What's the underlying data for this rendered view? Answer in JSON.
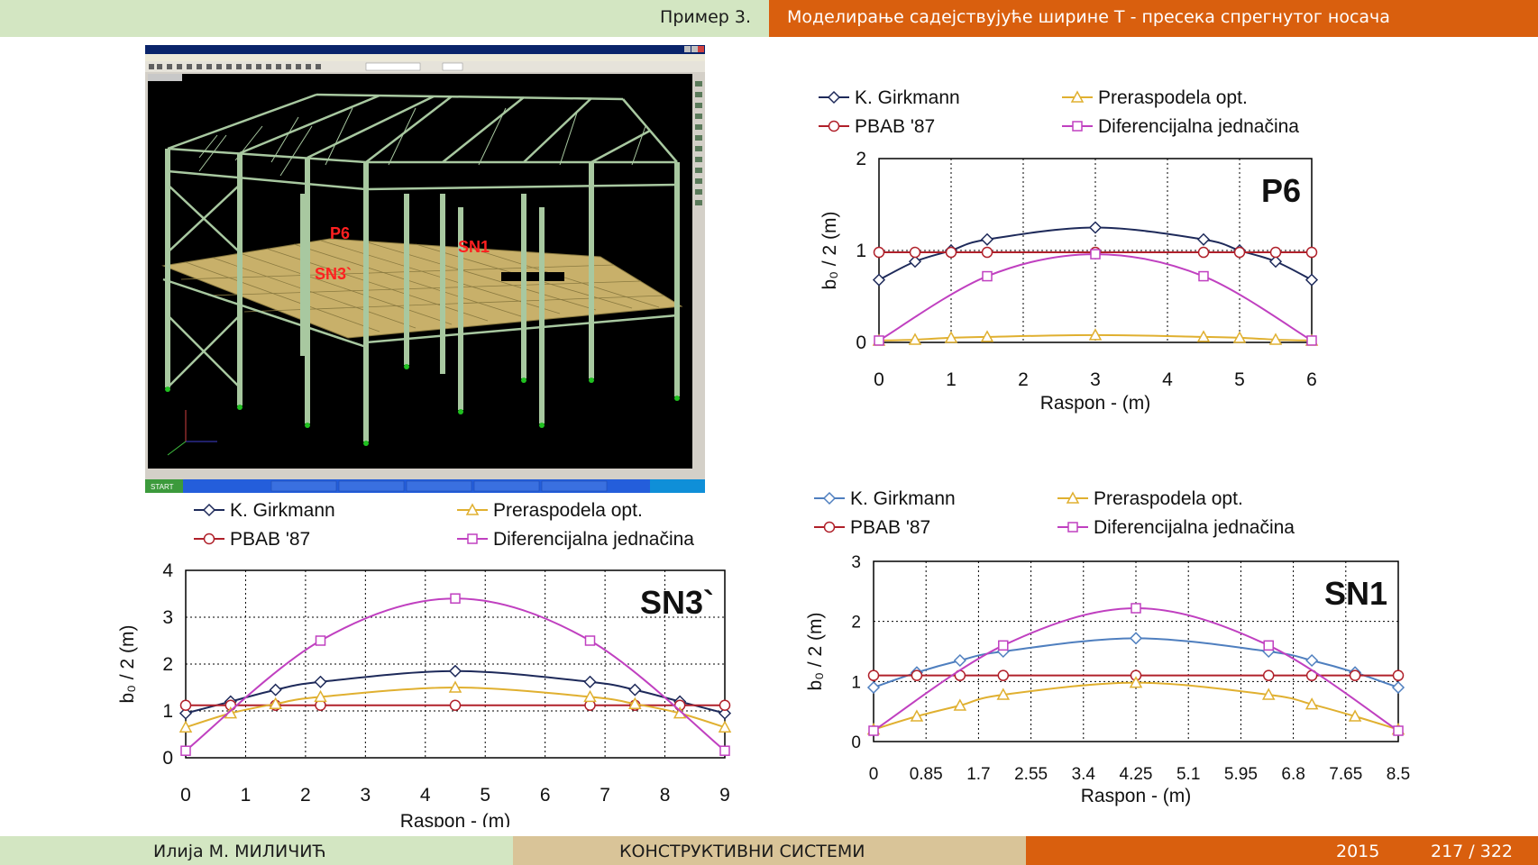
{
  "header": {
    "section": "Пример 3.",
    "title": "Моделирање садејствујуће ширине T - пресека спрегнутог носача"
  },
  "footer": {
    "author": "Илија М. МИЛИЧИЋ",
    "course": "КОНСТРУКТИВНИ СИСТЕМИ",
    "year": "2015",
    "page": "217 / 322"
  },
  "screenshot": {
    "label_p6": "P6",
    "label_sn3": "SN3`",
    "label_sn1": "SN1",
    "start_label": "START",
    "colors": {
      "background": "#000000",
      "frame": "#a8c8a0",
      "slab": "#c8b06a",
      "label": "#ff2020"
    }
  },
  "colors": {
    "girkmann": "#1e2a5a",
    "girkmann_sn1": "#4f7fbf",
    "pbab": "#b0202a",
    "preraspodela": "#e0b030",
    "diferencijalna": "#c040c0"
  },
  "chart_data": [
    {
      "type": "line",
      "title": "P6",
      "xlabel": "Raspon - (m)",
      "ylabel": "b₀ / 2  (m)",
      "xlim": [
        0,
        6
      ],
      "ylim": [
        0,
        2
      ],
      "xticks": [
        0,
        1,
        2,
        3,
        4,
        5,
        6
      ],
      "yticks": [
        0,
        1,
        2
      ],
      "xtick_labels": [
        "0",
        "1",
        "2",
        "3",
        "4",
        "5",
        "6"
      ],
      "grid": true,
      "legend": "top",
      "series": [
        {
          "name": "K. Girkmann",
          "marker": "diamond",
          "color_key": "girkmann",
          "x": [
            0,
            0.5,
            1,
            1.5,
            3,
            4.5,
            5,
            5.5,
            6
          ],
          "y": [
            0.68,
            0.88,
            1.0,
            1.12,
            1.25,
            1.12,
            1.0,
            0.88,
            0.68
          ]
        },
        {
          "name": "PBAB '87",
          "marker": "circle",
          "color_key": "pbab",
          "x": [
            0,
            0.5,
            1,
            1.5,
            3,
            4.5,
            5,
            5.5,
            6
          ],
          "y": [
            0.98,
            0.98,
            0.98,
            0.98,
            0.98,
            0.98,
            0.98,
            0.98,
            0.98
          ]
        },
        {
          "name": "Preraspodela opt.",
          "marker": "triangle",
          "color_key": "preraspodela",
          "x": [
            0,
            0.5,
            1,
            1.5,
            3,
            4.5,
            5,
            5.5,
            6
          ],
          "y": [
            0.02,
            0.03,
            0.05,
            0.06,
            0.08,
            0.06,
            0.05,
            0.03,
            0.02
          ]
        },
        {
          "name": "Diferencijalna jednačina",
          "marker": "square",
          "color_key": "diferencijalna",
          "x": [
            0,
            1.5,
            3,
            4.5,
            6
          ],
          "y": [
            0.02,
            0.72,
            0.96,
            0.72,
            0.02
          ]
        }
      ]
    },
    {
      "type": "line",
      "title": "SN3`",
      "xlabel": "Raspon - (m)",
      "ylabel": "b₀ / 2 (m)",
      "xlim": [
        0,
        9
      ],
      "ylim": [
        0,
        4
      ],
      "xticks": [
        0,
        1,
        2,
        3,
        4,
        5,
        6,
        7,
        8,
        9
      ],
      "yticks": [
        0,
        1,
        2,
        3,
        4
      ],
      "xtick_labels": [
        "0",
        "1",
        "2",
        "3",
        "4",
        "5",
        "6",
        "7",
        "8",
        "9"
      ],
      "grid": true,
      "legend": "top",
      "series": [
        {
          "name": "K. Girkmann",
          "marker": "diamond",
          "color_key": "girkmann",
          "x": [
            0,
            0.75,
            1.5,
            2.25,
            4.5,
            6.75,
            7.5,
            8.25,
            9
          ],
          "y": [
            0.95,
            1.2,
            1.45,
            1.62,
            1.85,
            1.62,
            1.45,
            1.2,
            0.95
          ]
        },
        {
          "name": "PBAB '87",
          "marker": "circle",
          "color_key": "pbab",
          "x": [
            0,
            0.75,
            1.5,
            2.25,
            4.5,
            6.75,
            7.5,
            8.25,
            9
          ],
          "y": [
            1.12,
            1.12,
            1.12,
            1.12,
            1.12,
            1.12,
            1.12,
            1.12,
            1.12
          ]
        },
        {
          "name": "Preraspodela opt.",
          "marker": "triangle",
          "color_key": "preraspodela",
          "x": [
            0,
            0.75,
            1.5,
            2.25,
            4.5,
            6.75,
            7.5,
            8.25,
            9
          ],
          "y": [
            0.65,
            0.95,
            1.15,
            1.3,
            1.5,
            1.3,
            1.15,
            0.95,
            0.65
          ]
        },
        {
          "name": "Diferencijalna jednačina",
          "marker": "square",
          "color_key": "diferencijalna",
          "x": [
            0,
            2.25,
            4.5,
            6.75,
            9
          ],
          "y": [
            0.15,
            2.5,
            3.4,
            2.5,
            0.15
          ]
        }
      ]
    },
    {
      "type": "line",
      "title": "SN1",
      "xlabel": "Raspon - (m)",
      "ylabel": "b₀ / 2 (m)",
      "xlim": [
        0,
        8.5
      ],
      "ylim": [
        0,
        3
      ],
      "xticks": [
        0,
        0.85,
        1.7,
        2.55,
        3.4,
        4.25,
        5.1,
        5.95,
        6.8,
        7.65,
        8.5
      ],
      "yticks": [
        0,
        1,
        2,
        3
      ],
      "xtick_labels": [
        "0",
        "0.85",
        "1.7",
        "2.55",
        "3.4",
        "4.25",
        "5.1",
        "5.95",
        "6.8",
        "7.65",
        "8.5"
      ],
      "grid": true,
      "legend": "top",
      "series": [
        {
          "name": "K. Girkmann",
          "marker": "diamond",
          "color_key": "girkmann_sn1",
          "x": [
            0,
            0.7,
            1.4,
            2.1,
            4.25,
            6.4,
            7.1,
            7.8,
            8.5
          ],
          "y": [
            0.9,
            1.15,
            1.35,
            1.5,
            1.72,
            1.5,
            1.35,
            1.15,
            0.9
          ]
        },
        {
          "name": "PBAB '87",
          "marker": "circle",
          "color_key": "pbab",
          "x": [
            0,
            0.7,
            1.4,
            2.1,
            4.25,
            6.4,
            7.1,
            7.8,
            8.5
          ],
          "y": [
            1.1,
            1.1,
            1.1,
            1.1,
            1.1,
            1.1,
            1.1,
            1.1,
            1.1
          ]
        },
        {
          "name": "Preraspodela opt.",
          "marker": "triangle",
          "color_key": "preraspodela",
          "x": [
            0,
            0.7,
            1.4,
            2.1,
            4.25,
            6.4,
            7.1,
            7.8,
            8.5
          ],
          "y": [
            0.2,
            0.42,
            0.6,
            0.78,
            0.98,
            0.78,
            0.62,
            0.42,
            0.2
          ]
        },
        {
          "name": "Diferencijalna jednačina",
          "marker": "square",
          "color_key": "diferencijalna",
          "x": [
            0,
            2.1,
            4.25,
            6.4,
            8.5
          ],
          "y": [
            0.18,
            1.6,
            2.22,
            1.6,
            0.18
          ]
        }
      ]
    }
  ]
}
